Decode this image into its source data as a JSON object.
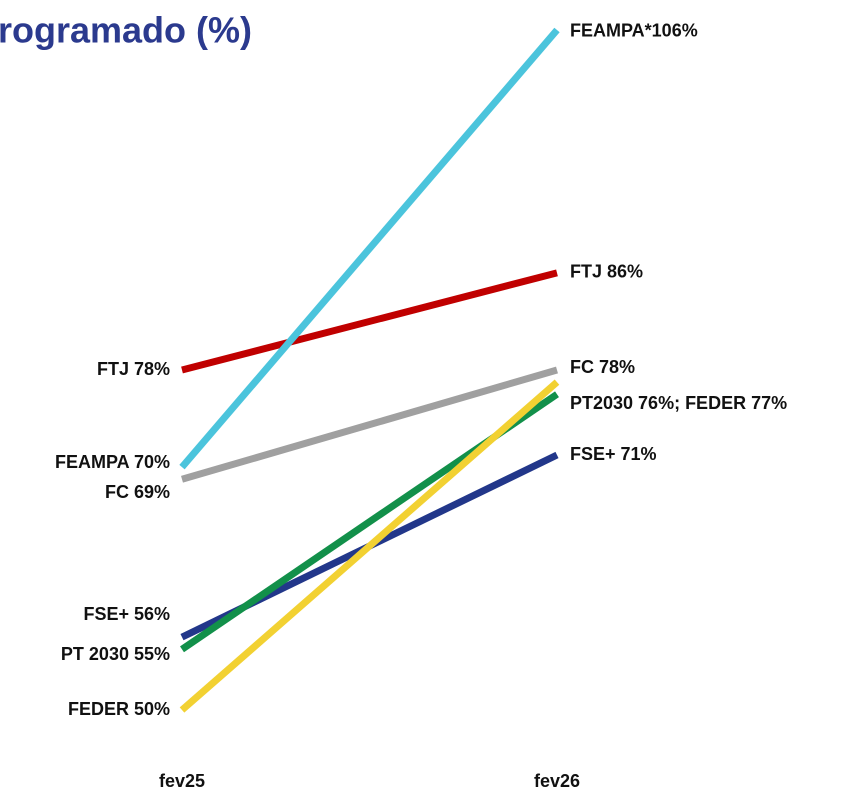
{
  "chart_data": {
    "type": "slope",
    "title": "rogramado (%)",
    "categories": [
      "fev25",
      "fev26"
    ],
    "ylim": [
      48,
      108
    ],
    "series": [
      {
        "name": "FTJ",
        "color": "#c00000",
        "values": [
          78,
          86
        ],
        "value_labels": [
          "FTJ 78%",
          "FTJ 86%"
        ]
      },
      {
        "name": "FEAMPA",
        "color": "#4bc4dc",
        "values": [
          70,
          106
        ],
        "value_labels": [
          "FEAMPA 70%",
          "FEAMPA*106%"
        ]
      },
      {
        "name": "FC",
        "color": "#a0a0a0",
        "values": [
          69,
          78
        ],
        "value_labels": [
          "FC 69%",
          "FC 78%"
        ]
      },
      {
        "name": "FSE+",
        "color": "#22378a",
        "values": [
          56,
          71
        ],
        "value_labels": [
          "FSE+ 56%",
          "FSE+ 71%"
        ]
      },
      {
        "name": "PT 2030",
        "color": "#12904a",
        "values": [
          55,
          76
        ],
        "value_labels": [
          "PT 2030 55%",
          "PT2030 76%; FEDER 77%"
        ]
      },
      {
        "name": "FEDER",
        "color": "#f2d132",
        "values": [
          50,
          77
        ],
        "value_labels": [
          "FEDER 50%",
          null
        ]
      }
    ]
  }
}
